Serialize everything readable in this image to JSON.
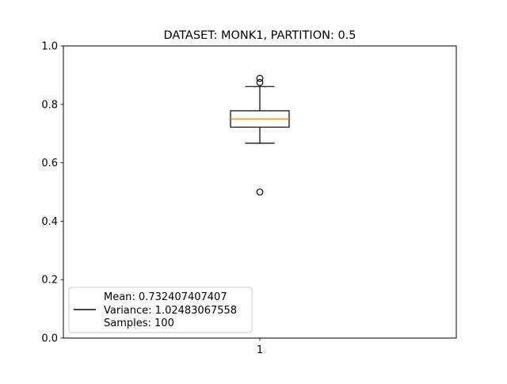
{
  "chart_data": {
    "type": "box",
    "title": "DATASET: MONK1, PARTITION: 0.5",
    "xlabel": "",
    "ylabel": "",
    "ylim": [
      0.0,
      1.0
    ],
    "yticks": [
      "0.0",
      "0.2",
      "0.4",
      "0.6",
      "0.8",
      "1.0"
    ],
    "ytick_values": [
      0.0,
      0.2,
      0.4,
      0.6,
      0.8,
      1.0
    ],
    "categories": [
      "1"
    ],
    "boxes": [
      {
        "category": "1",
        "whisker_low": 0.667,
        "q1": 0.722,
        "median": 0.75,
        "q3": 0.778,
        "whisker_high": 0.861,
        "outliers": [
          0.5,
          0.875,
          0.889
        ]
      }
    ],
    "legend": {
      "placement": "lower-left",
      "lines": [
        "Mean: 0.732407407407",
        "Variance: 1.02483067558",
        "Samples: 100"
      ]
    },
    "grid": false,
    "colors": {
      "box": "#000000",
      "median": "#ff7f0e",
      "background": "#ffffff"
    }
  }
}
